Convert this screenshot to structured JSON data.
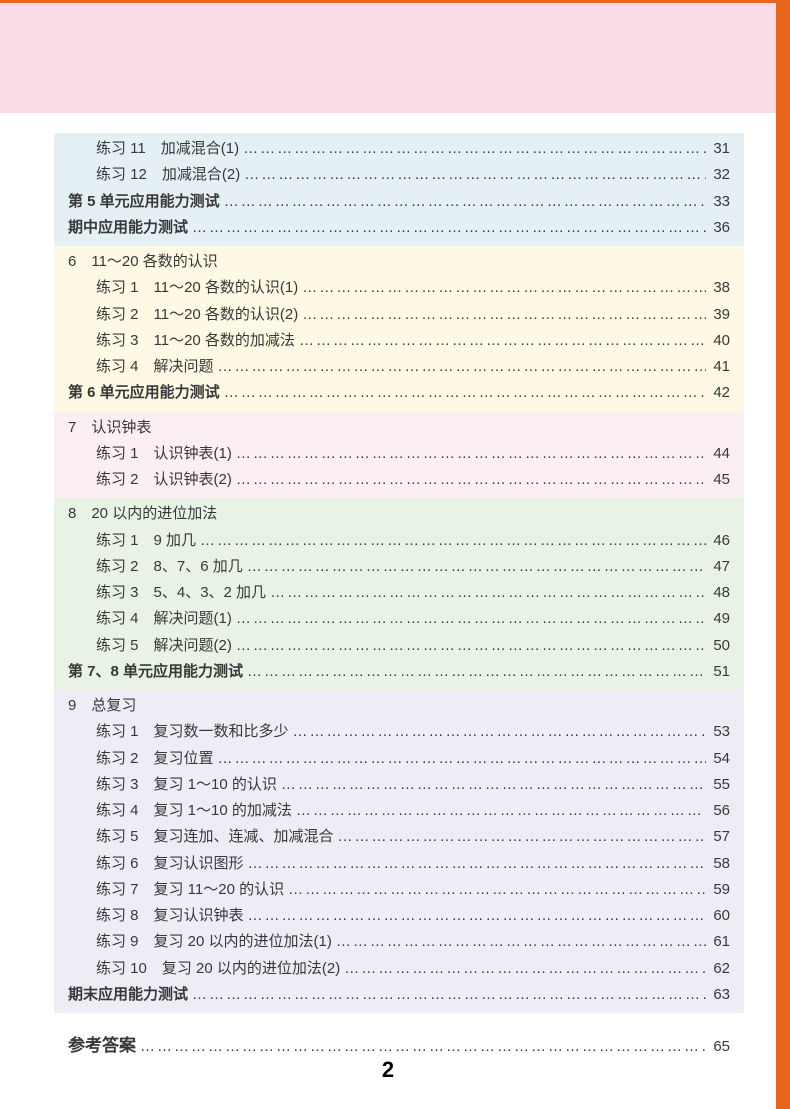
{
  "page_number": "2",
  "colors": {
    "border": "#e8661b",
    "pink_header": "#fadce8",
    "blue": "#e5f0f5",
    "yellow": "#fdf9e4",
    "pink": "#fbeff3",
    "green": "#e9f3e5",
    "lavender": "#f0ecf5",
    "text": "#383838"
  },
  "sections": [
    {
      "bg": "sec-blue",
      "rows": [
        {
          "label": "练习 11　加减混合(1)",
          "page": "31",
          "indent": true
        },
        {
          "label": "练习 12　加减混合(2)",
          "page": "32",
          "indent": true
        },
        {
          "label": "第 5 单元应用能力测试",
          "page": "33",
          "bold": true
        },
        {
          "label": "期中应用能力测试",
          "page": "36",
          "bold": true
        }
      ]
    },
    {
      "bg": "sec-yellow",
      "heading": "6　11～20 各数的认识",
      "rows": [
        {
          "label": "练习 1　11～20 各数的认识(1)",
          "page": "38",
          "indent": true
        },
        {
          "label": "练习 2　11～20 各数的认识(2)",
          "page": "39",
          "indent": true
        },
        {
          "label": "练习 3　11～20 各数的加减法",
          "page": "40",
          "indent": true
        },
        {
          "label": "练习 4　解决问题",
          "page": "41",
          "indent": true
        },
        {
          "label": "第 6 单元应用能力测试",
          "page": "42",
          "bold": true
        }
      ]
    },
    {
      "bg": "sec-pink",
      "heading": "7　认识钟表",
      "rows": [
        {
          "label": "练习 1　认识钟表(1)",
          "page": "44",
          "indent": true
        },
        {
          "label": "练习 2　认识钟表(2)",
          "page": "45",
          "indent": true
        }
      ]
    },
    {
      "bg": "sec-green",
      "heading": "8　20 以内的进位加法",
      "rows": [
        {
          "label": "练习 1　9 加几",
          "page": "46",
          "indent": true
        },
        {
          "label": "练习 2　8、7、6 加几",
          "page": "47",
          "indent": true
        },
        {
          "label": "练习 3　5、4、3、2 加几",
          "page": "48",
          "indent": true
        },
        {
          "label": "练习 4　解决问题(1)",
          "page": "49",
          "indent": true
        },
        {
          "label": "练习 5　解决问题(2)",
          "page": "50",
          "indent": true
        },
        {
          "label": "第 7、8 单元应用能力测试",
          "page": "51",
          "bold": true
        }
      ]
    },
    {
      "bg": "sec-lavender",
      "heading": "9　总复习",
      "rows": [
        {
          "label": "练习 1　复习数一数和比多少",
          "page": "53",
          "indent": true
        },
        {
          "label": "练习 2　复习位置",
          "page": "54",
          "indent": true
        },
        {
          "label": "练习 3　复习 1～10 的认识",
          "page": "55",
          "indent": true
        },
        {
          "label": "练习 4　复习 1～10 的加减法",
          "page": "56",
          "indent": true
        },
        {
          "label": "练习 5　复习连加、连减、加减混合",
          "page": "57",
          "indent": true
        },
        {
          "label": "练习 6　复习认识图形",
          "page": "58",
          "indent": true
        },
        {
          "label": "练习 7　复习 11～20 的认识",
          "page": "59",
          "indent": true
        },
        {
          "label": "练习 8　复习认识钟表",
          "page": "60",
          "indent": true
        },
        {
          "label": "练习 9　复习 20 以内的进位加法(1)",
          "page": "61",
          "indent": true
        },
        {
          "label": "练习 10　复习 20 以内的进位加法(2)",
          "page": "62",
          "indent": true
        },
        {
          "label": "期末应用能力测试",
          "page": "63",
          "bold": true
        }
      ]
    }
  ],
  "answers": {
    "label": "参考答案",
    "page": "65"
  }
}
